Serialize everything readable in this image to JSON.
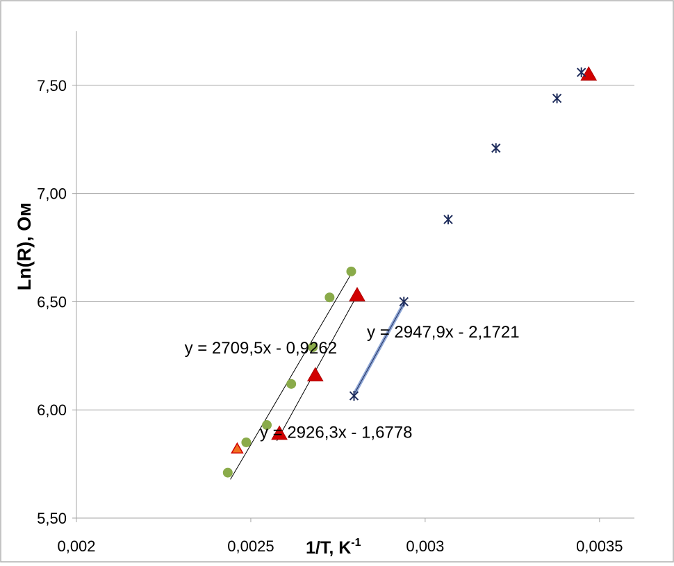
{
  "chart_data": {
    "type": "scatter",
    "ylabel": "Ln(R), Ом",
    "xlabel_base": "1/T,  K",
    "xlabel_sup": "-1",
    "xlim": [
      0.002,
      0.0036
    ],
    "ylim": [
      5.5,
      7.75
    ],
    "x_ticks": [
      0.002,
      0.0025,
      0.003,
      0.0035
    ],
    "x_tick_labels": [
      "0,002",
      "0,0025",
      "0,003",
      "0,0035"
    ],
    "y_ticks": [
      5.5,
      6.0,
      6.5,
      7.0,
      7.5
    ],
    "y_tick_labels": [
      "5,50",
      "6,00",
      "6,50",
      "7,00",
      "7,50"
    ],
    "grid": "horizontal",
    "colors": {
      "green": "#8aab4a",
      "red": "#d10000",
      "orange": "#f07020",
      "navy": "#1f2d5c",
      "grid": "#a6a6a6",
      "trend_blue": "#6a8ac8"
    },
    "series": [
      {
        "marker": "circle",
        "color": "#8aab4a",
        "points": [
          [
            0.002434,
            5.71
          ],
          [
            0.002487,
            5.85
          ],
          [
            0.002546,
            5.93
          ],
          [
            0.002616,
            6.12
          ],
          [
            0.002678,
            6.29
          ],
          [
            0.002726,
            6.52
          ],
          [
            0.002788,
            6.64
          ]
        ]
      },
      {
        "marker": "triangle",
        "color": "#d10000",
        "points": [
          [
            0.002582,
            5.89
          ],
          [
            0.002685,
            6.16
          ],
          [
            0.002805,
            6.53
          ],
          [
            0.003469,
            7.55
          ]
        ]
      },
      {
        "marker": "triangle-small",
        "color": "#f07020",
        "points": [
          [
            0.002461,
            5.82
          ]
        ]
      },
      {
        "marker": "star",
        "color": "#1f2d5c",
        "points": [
          [
            0.002796,
            6.065
          ],
          [
            0.002939,
            6.5
          ],
          [
            0.003066,
            6.88
          ],
          [
            0.003203,
            7.21
          ],
          [
            0.003378,
            7.44
          ],
          [
            0.003448,
            7.56
          ]
        ]
      }
    ],
    "trendlines": [
      {
        "x": [
          0.002442,
          0.002791
        ],
        "y": [
          5.68,
          6.637
        ],
        "color": "#000000",
        "width": 1
      },
      {
        "x": [
          0.002575,
          0.002805
        ],
        "y": [
          5.858,
          6.53
        ],
        "color": "#000000",
        "width": 1
      },
      {
        "x": [
          0.002799,
          0.002939
        ],
        "y": [
          6.08,
          6.492
        ],
        "color": "#6a8ac8",
        "width": 5
      }
    ],
    "annotations": [
      {
        "text": "y = 2709,5x - 0,9262",
        "anchor_x": 0.00231,
        "anchor_y": 6.26
      },
      {
        "text": "y = 2947,9x - 2,1721",
        "anchor_x": 0.002833,
        "anchor_y": 6.335
      },
      {
        "text": "y = 2926,3x - 1,6778",
        "anchor_x": 0.002526,
        "anchor_y": 5.87
      }
    ]
  }
}
